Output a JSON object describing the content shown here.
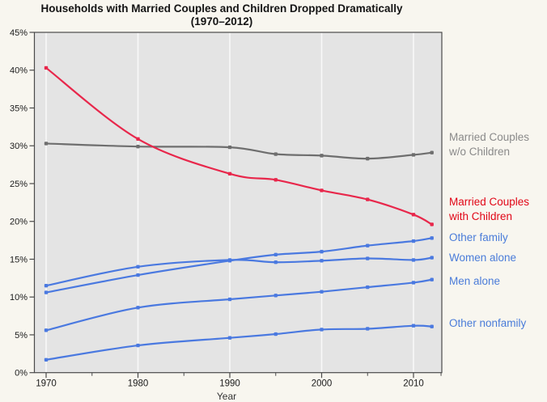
{
  "chart_data": {
    "type": "line",
    "title": "Households with Married Couples and Children Dropped Dramatically",
    "subtitle": "(1970–2012)",
    "xlabel": "Year",
    "x": [
      1970,
      1980,
      1990,
      1995,
      2000,
      2005,
      2010,
      2012
    ],
    "xlim": [
      1970,
      2013
    ],
    "ylim": [
      0,
      45
    ],
    "x_major_ticks": [
      1970,
      1980,
      1990,
      2000,
      2010
    ],
    "x_minor_ticks": [
      1975,
      1985,
      1995,
      2005,
      2013
    ],
    "y_ticks": [
      0,
      5,
      10,
      15,
      20,
      25,
      30,
      35,
      40,
      45
    ],
    "y_tick_suffix": "%",
    "grid": "vertical white gridlines at decade years",
    "legend_position": "right margin, colored text labels",
    "series": [
      {
        "label": "Married Couples w/o Children",
        "label_lines": [
          "Married Couples",
          "w/o Children"
        ],
        "color": "#6e6e6e",
        "values": [
          30.3,
          29.9,
          29.8,
          28.9,
          28.7,
          28.3,
          28.8,
          29.1
        ]
      },
      {
        "label": "Married Couples with Children",
        "label_lines": [
          "Married Couples",
          "with Children"
        ],
        "color": "#e8274b",
        "values": [
          40.3,
          30.9,
          26.3,
          25.5,
          24.1,
          22.9,
          20.9,
          19.6
        ]
      },
      {
        "label": "Other family",
        "color": "#4a79e0",
        "values": [
          10.6,
          12.9,
          14.8,
          15.6,
          16.0,
          16.8,
          17.4,
          17.8
        ]
      },
      {
        "label": "Women alone",
        "color": "#4a79e0",
        "values": [
          11.5,
          14.0,
          14.9,
          14.6,
          14.8,
          15.1,
          14.9,
          15.2
        ]
      },
      {
        "label": "Men alone",
        "color": "#4a79e0",
        "values": [
          5.6,
          8.6,
          9.7,
          10.2,
          10.7,
          11.3,
          11.9,
          12.3
        ]
      },
      {
        "label": "Other nonfamily",
        "color": "#4a79e0",
        "values": [
          1.7,
          3.6,
          4.6,
          5.1,
          5.7,
          5.8,
          6.2,
          6.1
        ]
      }
    ],
    "colors": {
      "page_background": "#f8f6ef",
      "plot_background": "#e4e4e4",
      "axis": "#4a4a4a",
      "gridline": "#f8f8f8",
      "title_text": "#141414",
      "tick_text": "#1a1a1a",
      "legend_gray_text": "#8a8a8a",
      "legend_red_text": "#e10617",
      "legend_blue_text": "#4a7cd9"
    }
  }
}
